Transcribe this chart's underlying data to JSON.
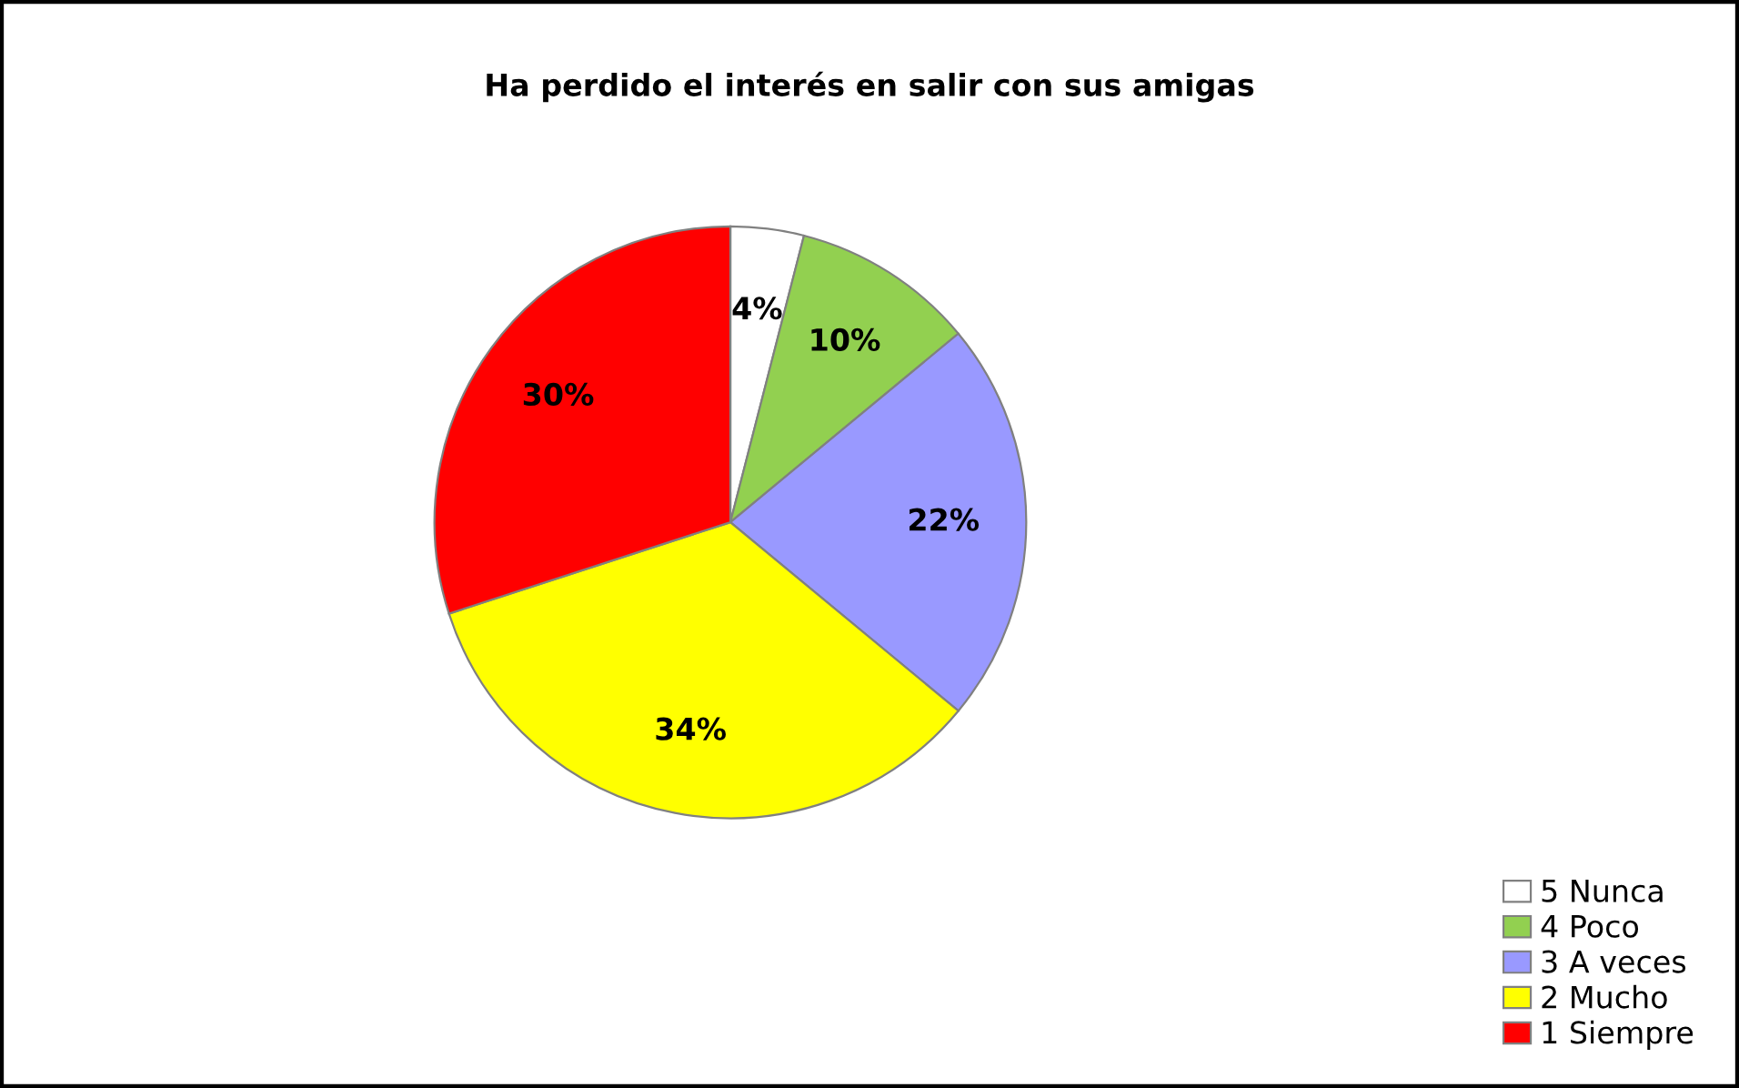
{
  "chart_data": {
    "type": "pie",
    "title": "Ha perdido el interés en salir con sus amigas",
    "categories": [
      "5 Nunca",
      "4 Poco",
      "3 A veces",
      "2 Mucho",
      "1 Siempre"
    ],
    "values": [
      4,
      10,
      22,
      34,
      30
    ],
    "colors": [
      "#ffffff",
      "#92d050",
      "#9999ff",
      "#ffff00",
      "#ff0000"
    ],
    "value_labels": [
      "4%",
      "10%",
      "22%",
      "34%",
      "30%"
    ],
    "legend": "bottom right"
  }
}
